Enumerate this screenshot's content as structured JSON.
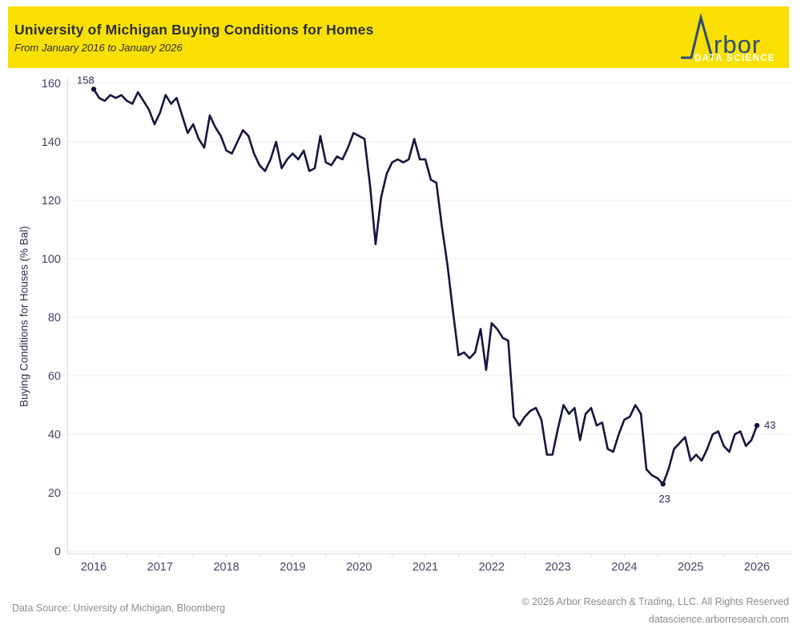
{
  "header": {
    "title": "University of Michigan Buying Conditions for Homes",
    "subtitle": "From January 2016 to January 2026",
    "background_color": "#F9E000"
  },
  "logo": {
    "icon": "mountain-peak-A-icon",
    "brand_text": "rbor",
    "tagline": "DATA SCIENCE",
    "brand_color": "#2E4C7B",
    "tagline_color": "#FFFFFF"
  },
  "annotations": [
    {
      "label": "158",
      "month_index": 0,
      "position": "above-left"
    },
    {
      "label": "23",
      "month_index": 103,
      "position": "below"
    },
    {
      "label": "43",
      "month_index": 120,
      "position": "right"
    }
  ],
  "footer": {
    "source": "Data Source: University of Michigan, Bloomberg",
    "copyright": "© 2026 Arbor Research & Trading, LLC. All Rights Reserved",
    "website": "datascience.arborresearch.com"
  },
  "chart_data": {
    "type": "line",
    "title": "University of Michigan Buying Conditions for Homes",
    "subtitle": "From January 2016 to January 2026",
    "frequency": "monthly",
    "x_start": "2016-01",
    "x_end": "2026-01",
    "xlabel": "",
    "ylabel": "Buying Conditions for Houses (% Bal)",
    "ylim": [
      0,
      160
    ],
    "ytick_step": 20,
    "y_tick_labels": [
      "0",
      "20",
      "40",
      "60",
      "80",
      "100",
      "120",
      "140",
      "160"
    ],
    "x_tick_labels": [
      "2016",
      "2017",
      "2018",
      "2019",
      "2020",
      "2021",
      "2022",
      "2023",
      "2024",
      "2025",
      "2026"
    ],
    "grid": true,
    "legend": false,
    "line_color": "#15153D",
    "series": [
      {
        "name": "Buying Conditions for Houses (% Bal)",
        "values": [
          158,
          155,
          154,
          156,
          155,
          156,
          154,
          153,
          157,
          154,
          151,
          146,
          150,
          156,
          153,
          155,
          149,
          143,
          146,
          141,
          138,
          149,
          145,
          142,
          137,
          136,
          140,
          144,
          142,
          136,
          132,
          130,
          134,
          140,
          131,
          134,
          136,
          134,
          137,
          130,
          131,
          142,
          133,
          132,
          135,
          134,
          138,
          143,
          142,
          141,
          125,
          105,
          121,
          129,
          133,
          134,
          133,
          134,
          141,
          134,
          134,
          127,
          126,
          111,
          98,
          82,
          67,
          68,
          66,
          68,
          76,
          62,
          78,
          76,
          73,
          72,
          46,
          43,
          46,
          48,
          49,
          45,
          33,
          33,
          42,
          50,
          47,
          49,
          38,
          47,
          49,
          43,
          44,
          35,
          34,
          40,
          45,
          46,
          50,
          47,
          28,
          26,
          25,
          23,
          28,
          35,
          37,
          39,
          31,
          33,
          31,
          35,
          40,
          41,
          36,
          34,
          40,
          41,
          36,
          38,
          43
        ]
      }
    ],
    "annotated_points": [
      {
        "date": "2016-01",
        "value": 158
      },
      {
        "date": "2024-08",
        "value": 23
      },
      {
        "date": "2026-01",
        "value": 43
      }
    ]
  }
}
